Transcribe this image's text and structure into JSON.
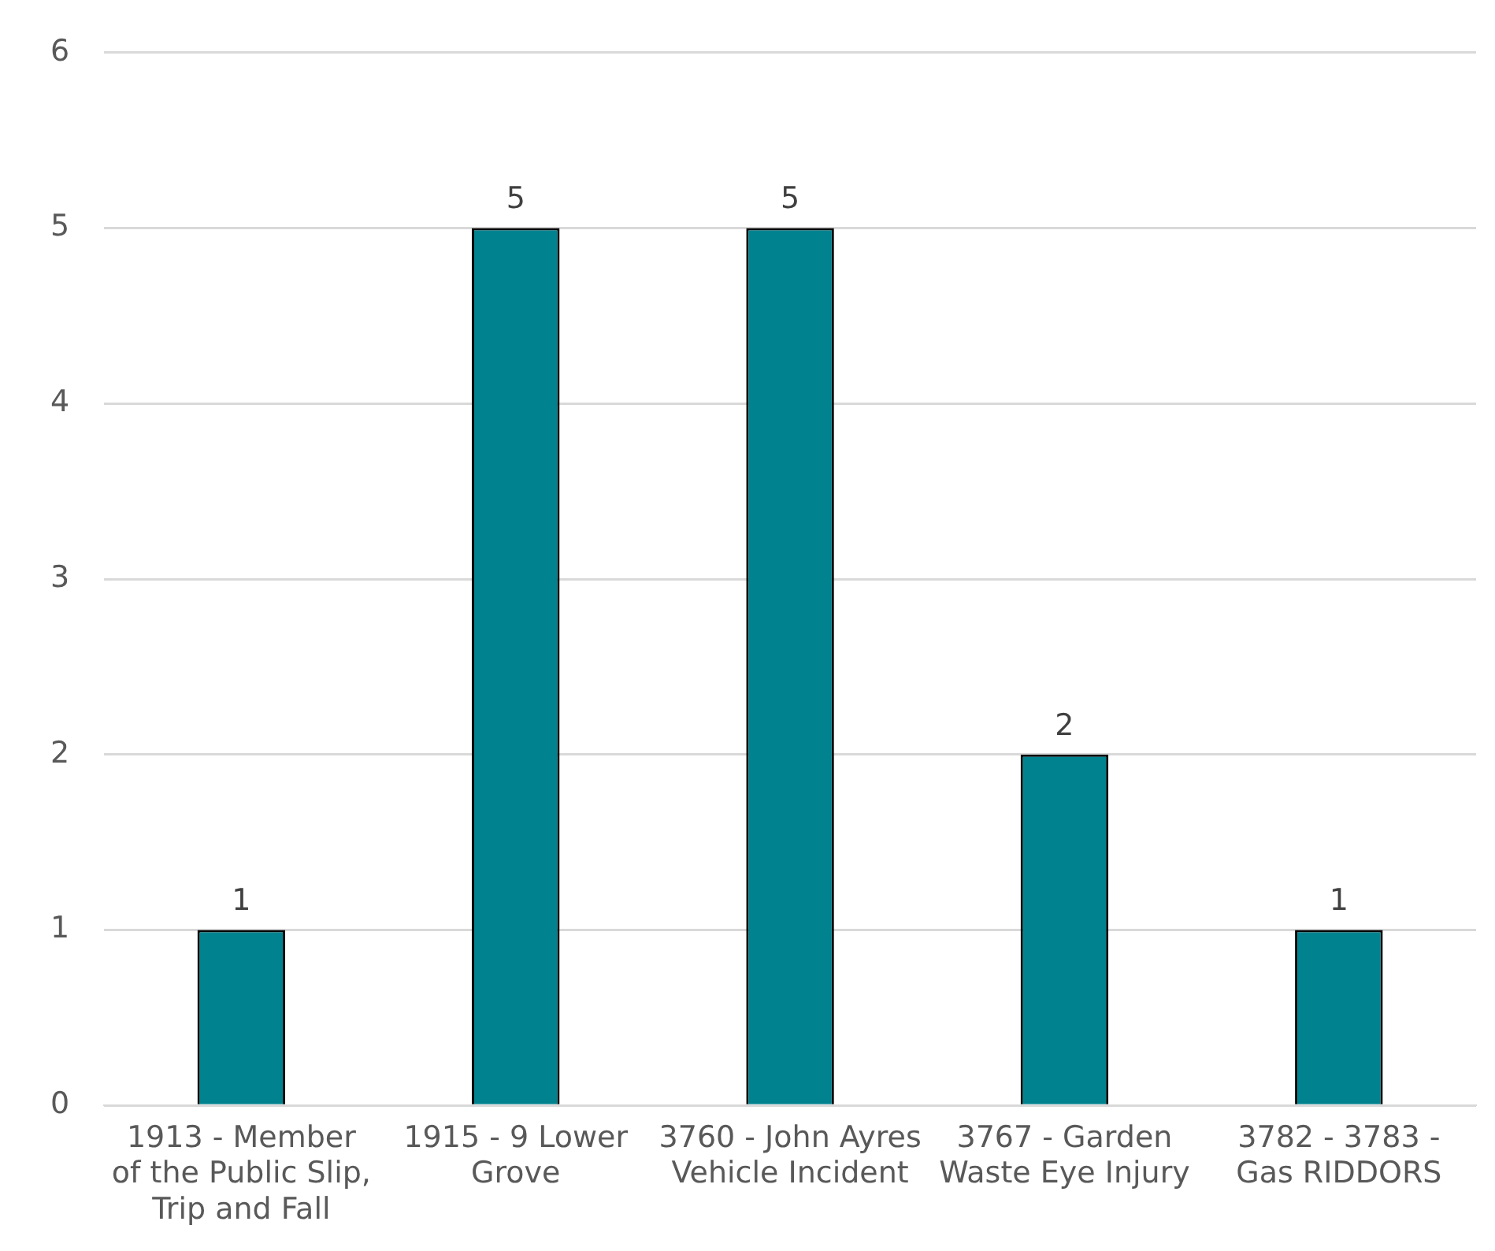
{
  "chart_data": {
    "type": "bar",
    "categories": [
      "1913 - Member of the Public Slip, Trip and Fall",
      "1915 - 9 Lower Grove",
      "3760 - John Ayres Vehicle Incident",
      "3767 - Garden Waste Eye Injury",
      "3782 - 3783 - Gas RIDDORS"
    ],
    "values": [
      1,
      5,
      5,
      2,
      1
    ],
    "color": "#00838f",
    "ylim": [
      0,
      6
    ],
    "yticks": [
      0,
      1,
      2,
      3,
      4,
      5,
      6
    ],
    "grid": "y",
    "data_labels": true
  }
}
